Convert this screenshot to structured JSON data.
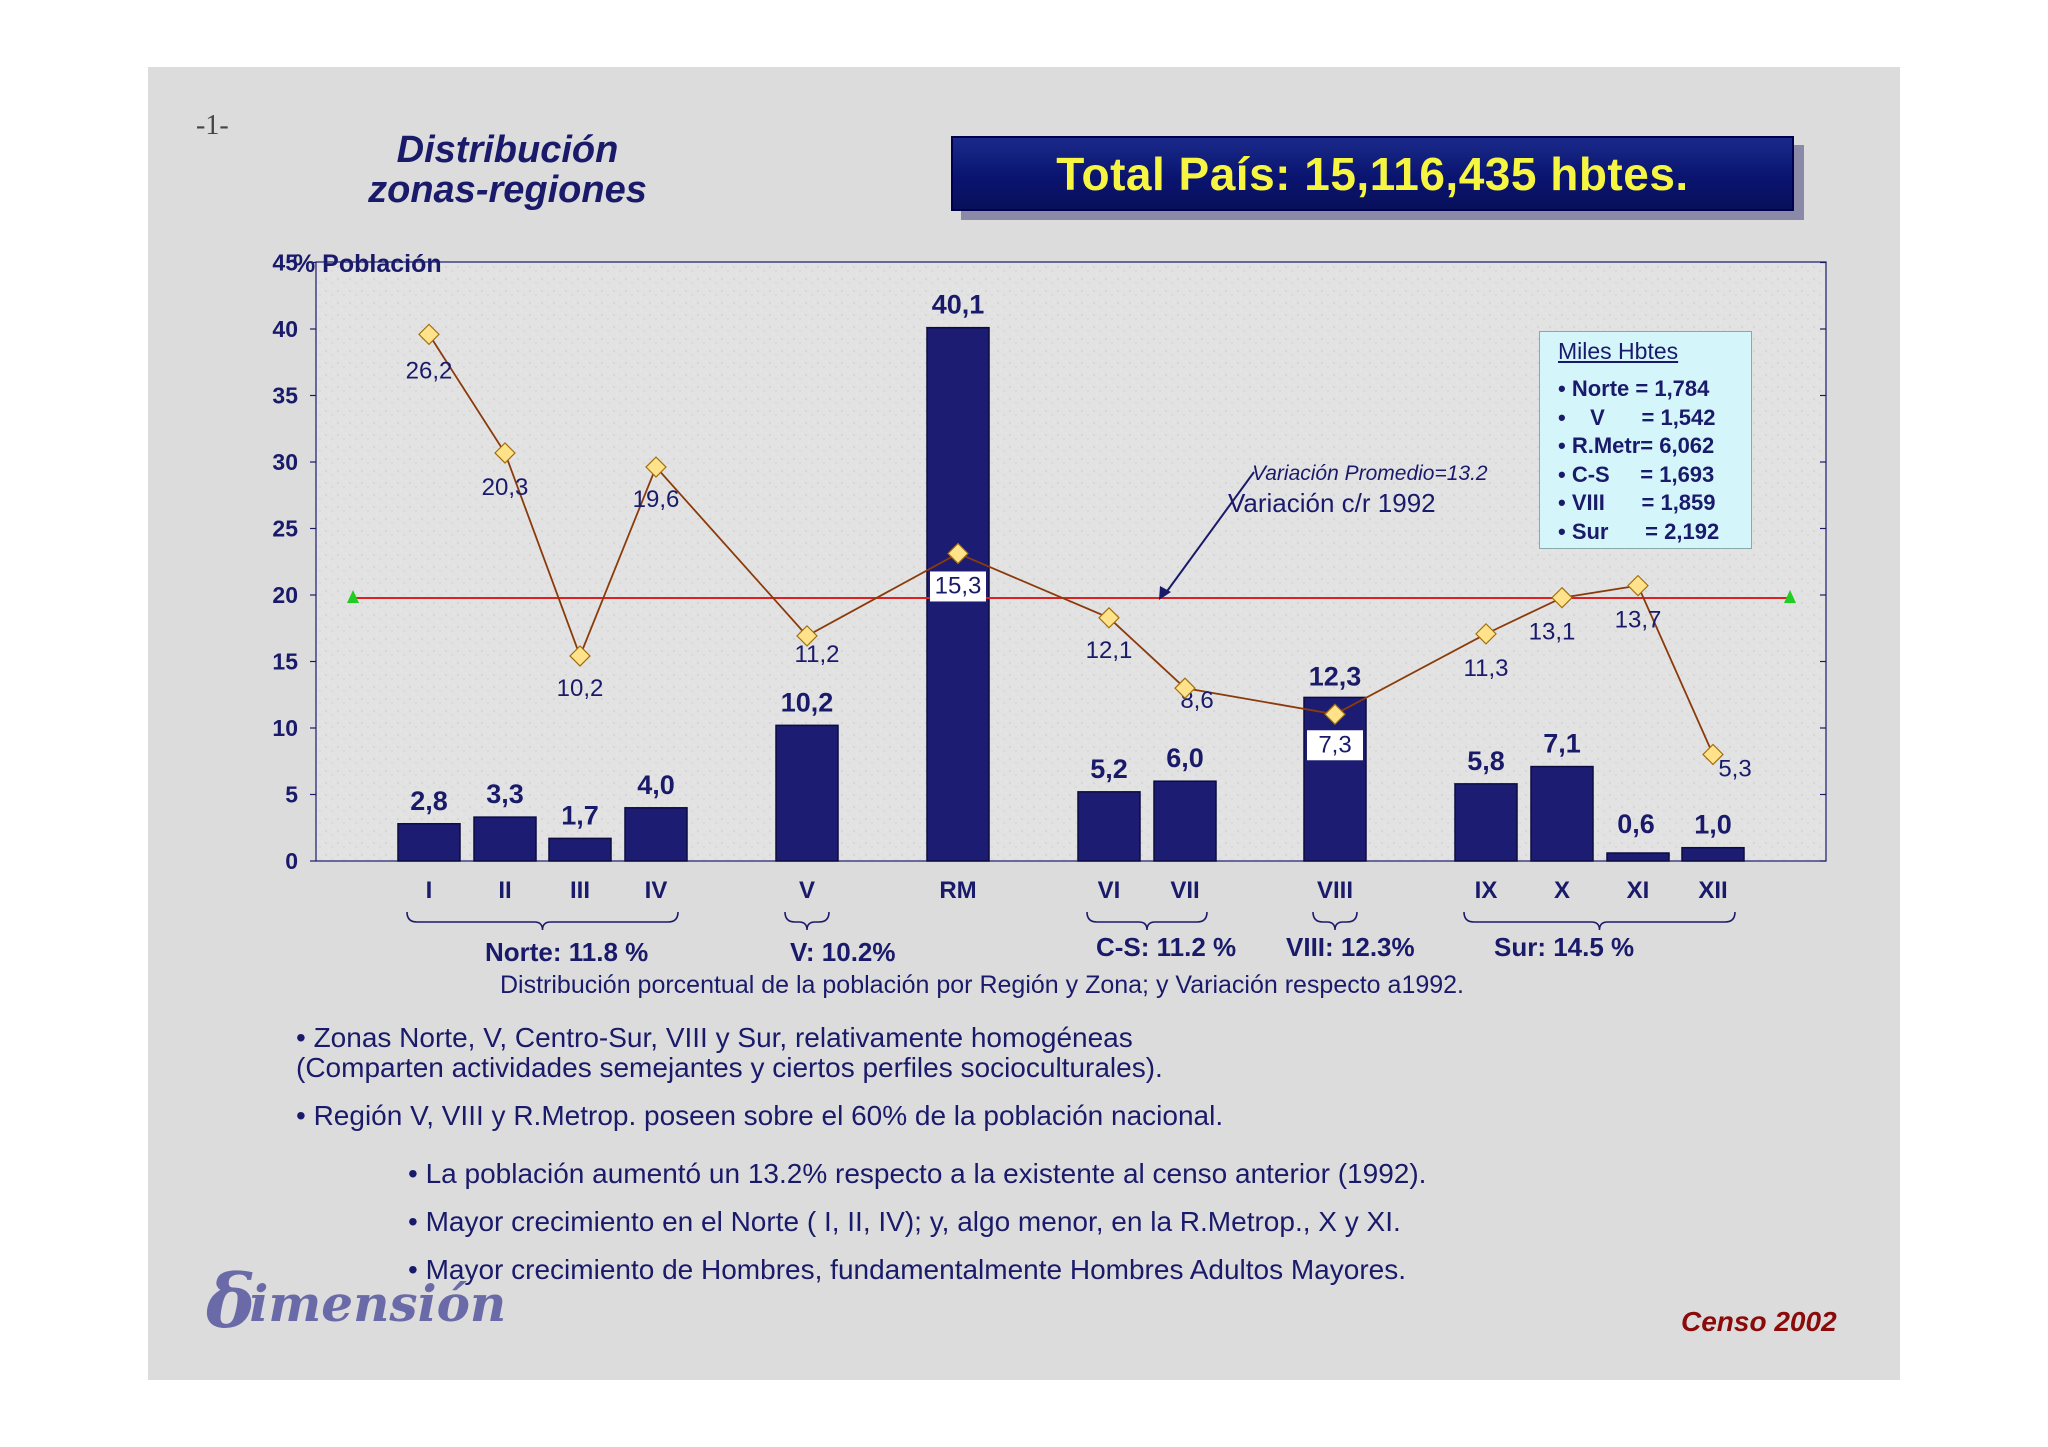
{
  "page_number": "-1-",
  "title_line1": "Distribución",
  "title_line2": "zonas-regiones",
  "total_banner": "Total País: 15,116,435 hbtes.",
  "chart_data": {
    "type": "bar",
    "ylabel": "% Población",
    "ylim": [
      0,
      45
    ],
    "yticks": [
      "0",
      "5",
      "10",
      "15",
      "20",
      "25",
      "30",
      "35",
      "40",
      "45"
    ],
    "categories": [
      "I",
      "II",
      "III",
      "IV",
      "V",
      "RM",
      "VI",
      "VII",
      "VIII",
      "IX",
      "X",
      "XI",
      "XII"
    ],
    "series": [
      {
        "name": "% Población",
        "type": "bar",
        "color": "#1c1c72",
        "values": [
          2.8,
          3.3,
          1.7,
          4.0,
          10.2,
          40.1,
          5.2,
          6.0,
          12.3,
          5.8,
          7.1,
          0.6,
          1.0
        ],
        "labels": [
          "2,8",
          "3,3",
          "1,7",
          "4,0",
          "10,2",
          "40,1",
          "5,2",
          "6,0",
          "12,3",
          "5,8",
          "7,1",
          "0,6",
          "1,0"
        ]
      },
      {
        "name": "Variación c/r 1992",
        "type": "line",
        "color": "#8b3a0a",
        "marker_color": "#ffe28a",
        "values": [
          26.2,
          20.3,
          10.2,
          19.6,
          11.2,
          15.3,
          12.1,
          8.6,
          7.3,
          11.3,
          13.1,
          13.7,
          5.3
        ],
        "labels": [
          "26,2",
          "20,3",
          "10,2",
          "19,6",
          "11,2",
          "15,3",
          "12,1",
          "8,6",
          "7,3",
          "11,3",
          "13,1",
          "13,7",
          "5,3"
        ]
      }
    ],
    "average_line": {
      "label": "Variación Promedio=13.2",
      "color": "#e02020",
      "marker_color": "#22cc22"
    },
    "variacion_label": "Variación c/r 1992",
    "caption": "Distribución porcentual de la población por Región y Zona; y Variación respecto a1992.",
    "zones": [
      {
        "label": "Norte: 11.8 %",
        "from": "I",
        "to": "IV"
      },
      {
        "label": "V: 10.2%",
        "from": "V",
        "to": "V"
      },
      {
        "label": "C-S: 11.2 %",
        "from": "VI",
        "to": "VII"
      },
      {
        "label": "VIII: 12.3%",
        "from": "VIII",
        "to": "VIII"
      },
      {
        "label": "Sur: 14.5 %",
        "from": "IX",
        "to": "XII"
      }
    ]
  },
  "legend": {
    "title": "Miles Hbtes",
    "items": [
      "• Norte = 1,784",
      "•    V      = 1,542",
      "• R.Metr= 6,062",
      "• C-S     = 1,693",
      "• VIII      = 1,859",
      "• Sur      = 2,192"
    ]
  },
  "bullets_main": [
    "• Zonas Norte, V, Centro-Sur, VIII y Sur, relativamente homogéneas",
    "(Comparten actividades semejantes y ciertos perfiles socioculturales).",
    "• Región V, VIII y R.Metrop. poseen sobre el 60% de la población nacional."
  ],
  "bullets_sub": [
    "• La población aumentó un 13.2% respecto a la existente al censo anterior (1992).",
    "• Mayor crecimiento en el Norte ( I, II, IV); y, algo menor, en la R.Metrop., X y XI.",
    "• Mayor crecimiento de Hombres, fundamentalmente Hombres Adultos Mayores."
  ],
  "logo_initial": "δ",
  "logo_text": "imensión",
  "footer": "Censo 2002",
  "colors": {
    "bar": "#1c1c72",
    "text": "#1a1a6a",
    "banner_text": "#f5f542",
    "banner_bg": "#0a1470",
    "footer": "#8b0a0a"
  }
}
